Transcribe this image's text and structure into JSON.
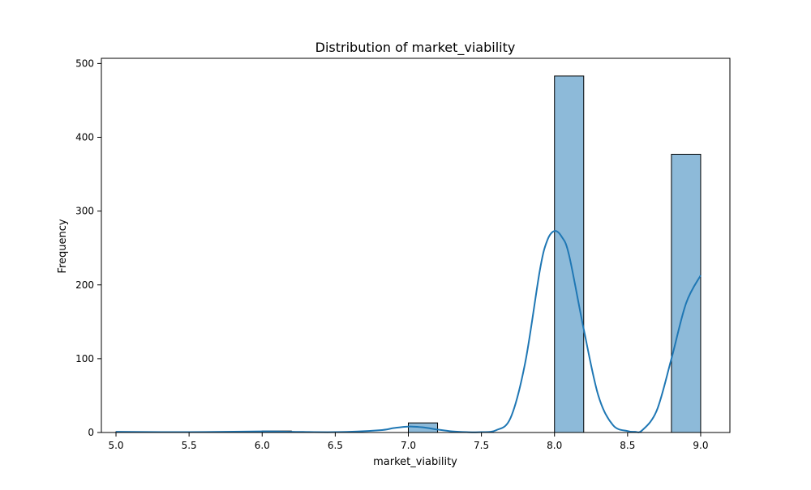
{
  "chart_data": {
    "type": "bar",
    "subtype": "histogram-with-kde",
    "title": "Distribution of market_viability",
    "xlabel": "market_viability",
    "ylabel": "Frequency",
    "xlim": [
      4.9,
      9.2
    ],
    "ylim": [
      0,
      507
    ],
    "x_ticks": [
      "5.0",
      "5.5",
      "6.0",
      "6.5",
      "7.0",
      "7.5",
      "8.0",
      "8.5",
      "9.0"
    ],
    "y_ticks": [
      "0",
      "100",
      "200",
      "300",
      "400",
      "500"
    ],
    "bins": [
      {
        "x0": 5.0,
        "x1": 5.2,
        "count": 1
      },
      {
        "x0": 5.2,
        "x1": 5.4,
        "count": 0
      },
      {
        "x0": 5.4,
        "x1": 5.6,
        "count": 0
      },
      {
        "x0": 5.6,
        "x1": 5.8,
        "count": 0
      },
      {
        "x0": 5.8,
        "x1": 6.0,
        "count": 0
      },
      {
        "x0": 6.0,
        "x1": 6.2,
        "count": 2
      },
      {
        "x0": 6.2,
        "x1": 6.4,
        "count": 0
      },
      {
        "x0": 6.4,
        "x1": 6.6,
        "count": 0
      },
      {
        "x0": 6.6,
        "x1": 6.8,
        "count": 0
      },
      {
        "x0": 6.8,
        "x1": 7.0,
        "count": 0
      },
      {
        "x0": 7.0,
        "x1": 7.2,
        "count": 13
      },
      {
        "x0": 7.2,
        "x1": 7.4,
        "count": 0
      },
      {
        "x0": 7.4,
        "x1": 7.6,
        "count": 0
      },
      {
        "x0": 7.6,
        "x1": 7.8,
        "count": 0
      },
      {
        "x0": 7.8,
        "x1": 8.0,
        "count": 0
      },
      {
        "x0": 8.0,
        "x1": 8.2,
        "count": 483
      },
      {
        "x0": 8.2,
        "x1": 8.4,
        "count": 0
      },
      {
        "x0": 8.4,
        "x1": 8.6,
        "count": 0
      },
      {
        "x0": 8.6,
        "x1": 8.8,
        "count": 0
      },
      {
        "x0": 8.8,
        "x1": 9.0,
        "count": 377
      }
    ],
    "kde": {
      "x": [
        5.0,
        5.5,
        6.0,
        6.2,
        6.5,
        6.8,
        6.9,
        7.0,
        7.1,
        7.2,
        7.3,
        7.4,
        7.5,
        7.6,
        7.7,
        7.8,
        7.9,
        7.95,
        8.0,
        8.05,
        8.1,
        8.2,
        8.3,
        8.4,
        8.5,
        8.55,
        8.6,
        8.7,
        8.8,
        8.9,
        9.0
      ],
      "y": [
        1,
        0.5,
        1.5,
        1,
        0.5,
        3,
        6,
        8,
        7,
        4,
        1.5,
        0.5,
        0.5,
        3,
        20,
        95,
        220,
        260,
        273,
        265,
        240,
        140,
        50,
        10,
        2,
        1,
        3,
        30,
        100,
        175,
        213
      ]
    },
    "bar_color": "#8dbad9",
    "bar_edge_color": "#000000",
    "kde_color": "#1f77b4",
    "grid": false,
    "legend": false
  }
}
